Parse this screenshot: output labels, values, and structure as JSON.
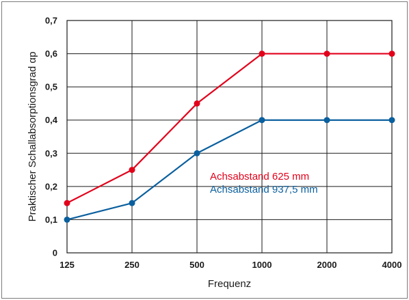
{
  "chart_data": {
    "type": "line",
    "categories": [
      "125",
      "250",
      "500",
      "1000",
      "2000",
      "4000"
    ],
    "series": [
      {
        "name": "Achsabstand 625 mm",
        "values": [
          0.15,
          0.25,
          0.45,
          0.6,
          0.6,
          0.6
        ],
        "color": "#e2001a"
      },
      {
        "name": "Achsabstand 937,5 mm",
        "values": [
          0.1,
          0.15,
          0.3,
          0.4,
          0.4,
          0.4
        ],
        "color": "#0a5f9e"
      }
    ],
    "xlabel": "Frequenz",
    "ylabel": "Praktischer Schallabsorptionsgrad αp",
    "ylim": [
      0,
      0.7
    ],
    "yticks": [
      {
        "value": 0,
        "label": "0"
      },
      {
        "value": 0.1,
        "label": "0,1"
      },
      {
        "value": 0.2,
        "label": "0,2"
      },
      {
        "value": 0.3,
        "label": "0,3"
      },
      {
        "value": 0.4,
        "label": "0,4"
      },
      {
        "value": 0.5,
        "label": "0,5"
      },
      {
        "value": 0.6,
        "label": "0,6"
      },
      {
        "value": 0.7,
        "label": "0,7"
      }
    ],
    "grid": true,
    "legend": "inside-right"
  }
}
